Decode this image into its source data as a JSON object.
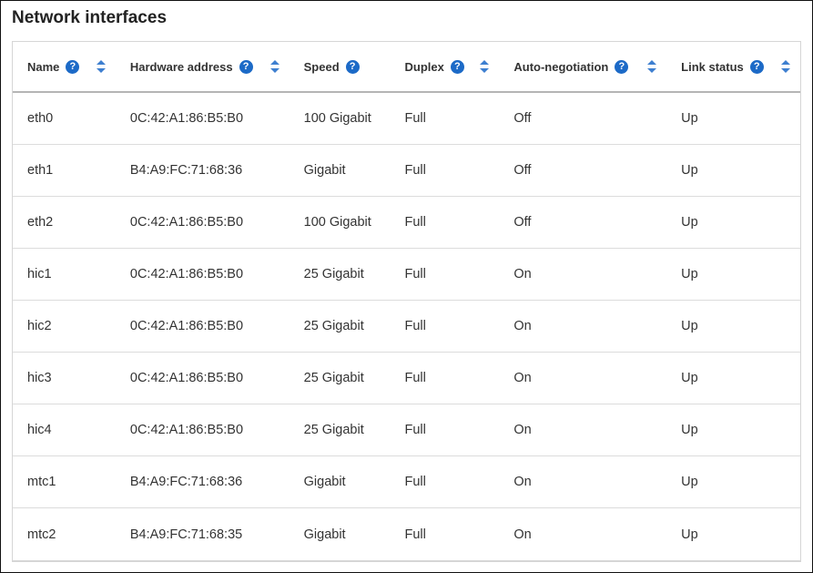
{
  "title": "Network interfaces",
  "columns": [
    {
      "label": "Name",
      "help": "?",
      "sortable": true
    },
    {
      "label": "Hardware address",
      "help": "?",
      "sortable": true
    },
    {
      "label": "Speed",
      "help": "?",
      "sortable": false
    },
    {
      "label": "Duplex",
      "help": "?",
      "sortable": true
    },
    {
      "label": "Auto-negotiation",
      "help": "?",
      "sortable": true
    },
    {
      "label": "Link status",
      "help": "?",
      "sortable": true
    }
  ],
  "rows": [
    [
      "eth0",
      "0C:42:A1:86:B5:B0",
      "100 Gigabit",
      "Full",
      "Off",
      "Up"
    ],
    [
      "eth1",
      "B4:A9:FC:71:68:36",
      "Gigabit",
      "Full",
      "Off",
      "Up"
    ],
    [
      "eth2",
      "0C:42:A1:86:B5:B0",
      "100 Gigabit",
      "Full",
      "Off",
      "Up"
    ],
    [
      "hic1",
      "0C:42:A1:86:B5:B0",
      "25 Gigabit",
      "Full",
      "On",
      "Up"
    ],
    [
      "hic2",
      "0C:42:A1:86:B5:B0",
      "25 Gigabit",
      "Full",
      "On",
      "Up"
    ],
    [
      "hic3",
      "0C:42:A1:86:B5:B0",
      "25 Gigabit",
      "Full",
      "On",
      "Up"
    ],
    [
      "hic4",
      "0C:42:A1:86:B5:B0",
      "25 Gigabit",
      "Full",
      "On",
      "Up"
    ],
    [
      "mtc1",
      "B4:A9:FC:71:68:36",
      "Gigabit",
      "Full",
      "On",
      "Up"
    ],
    [
      "mtc2",
      "B4:A9:FC:71:68:35",
      "Gigabit",
      "Full",
      "On",
      "Up"
    ]
  ],
  "colors": {
    "accent": "#1c6ac7",
    "sort": "#3d7fd0"
  }
}
